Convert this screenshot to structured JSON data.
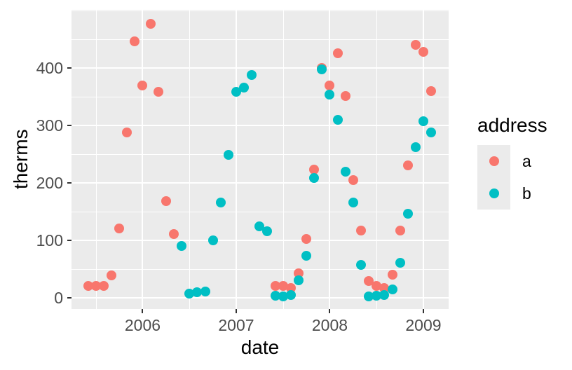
{
  "chart_data": {
    "type": "scatter",
    "title": "",
    "xlabel": "date",
    "ylabel": "therms",
    "legend_title": "address",
    "legend_position": "right",
    "panel_background": "#EBEBEB",
    "grid_color": "#FFFFFF",
    "axis_text_color": "#4D4D4D",
    "axis_title_color": "#000000",
    "tick_color": "#333333",
    "x_unit": "decimal_year_monthly",
    "xlim": [
      2005.24,
      2009.27
    ],
    "ylim": [
      -20,
      501
    ],
    "x_ticks": [
      {
        "value": 2006,
        "label": "2006"
      },
      {
        "value": 2007,
        "label": "2007"
      },
      {
        "value": 2008,
        "label": "2008"
      },
      {
        "value": 2009,
        "label": "2009"
      }
    ],
    "x_minor": [
      2005.5,
      2006.5,
      2007.5,
      2008.5
    ],
    "y_ticks": [
      {
        "value": 0,
        "label": "0"
      },
      {
        "value": 100,
        "label": "100"
      },
      {
        "value": 200,
        "label": "200"
      },
      {
        "value": 300,
        "label": "300"
      },
      {
        "value": 400,
        "label": "400"
      }
    ],
    "y_minor": [
      50,
      150,
      250,
      350,
      450,
      500
    ],
    "series": [
      {
        "name": "a",
        "color": "#F8766D",
        "points": [
          [
            2005.417,
            20
          ],
          [
            2005.5,
            20
          ],
          [
            2005.583,
            20
          ],
          [
            2005.667,
            38
          ],
          [
            2005.75,
            120
          ],
          [
            2005.833,
            287
          ],
          [
            2005.917,
            446
          ],
          [
            2006.0,
            369
          ],
          [
            2006.083,
            477
          ],
          [
            2006.167,
            358
          ],
          [
            2006.25,
            168
          ],
          [
            2006.333,
            111
          ],
          [
            2007.417,
            20
          ],
          [
            2007.5,
            20
          ],
          [
            2007.583,
            16
          ],
          [
            2007.667,
            42
          ],
          [
            2007.75,
            102
          ],
          [
            2007.833,
            223
          ],
          [
            2007.917,
            400
          ],
          [
            2008.0,
            369
          ],
          [
            2008.083,
            425
          ],
          [
            2008.167,
            351
          ],
          [
            2008.25,
            204
          ],
          [
            2008.333,
            117
          ],
          [
            2008.417,
            29
          ],
          [
            2008.5,
            20
          ],
          [
            2008.583,
            17
          ],
          [
            2008.667,
            40
          ],
          [
            2008.75,
            117
          ],
          [
            2008.833,
            230
          ],
          [
            2008.917,
            440
          ],
          [
            2009.0,
            428
          ],
          [
            2009.083,
            359
          ]
        ]
      },
      {
        "name": "b",
        "color": "#00BFC4",
        "points": [
          [
            2006.417,
            90
          ],
          [
            2006.5,
            7
          ],
          [
            2006.583,
            9
          ],
          [
            2006.667,
            11
          ],
          [
            2006.75,
            99
          ],
          [
            2006.833,
            165
          ],
          [
            2006.917,
            249
          ],
          [
            2007.0,
            358
          ],
          [
            2007.083,
            366
          ],
          [
            2007.167,
            388
          ],
          [
            2007.25,
            124
          ],
          [
            2007.333,
            115
          ],
          [
            2007.417,
            3
          ],
          [
            2007.5,
            2
          ],
          [
            2007.583,
            5
          ],
          [
            2007.667,
            30
          ],
          [
            2007.75,
            73
          ],
          [
            2007.833,
            208
          ],
          [
            2007.917,
            397
          ],
          [
            2008.0,
            353
          ],
          [
            2008.083,
            310
          ],
          [
            2008.167,
            219
          ],
          [
            2008.25,
            165
          ],
          [
            2008.333,
            57
          ],
          [
            2008.417,
            2
          ],
          [
            2008.5,
            3
          ],
          [
            2008.583,
            5
          ],
          [
            2008.667,
            14
          ],
          [
            2008.75,
            61
          ],
          [
            2008.833,
            146
          ],
          [
            2008.917,
            262
          ],
          [
            2009.0,
            307
          ],
          [
            2009.083,
            287
          ]
        ]
      }
    ]
  }
}
